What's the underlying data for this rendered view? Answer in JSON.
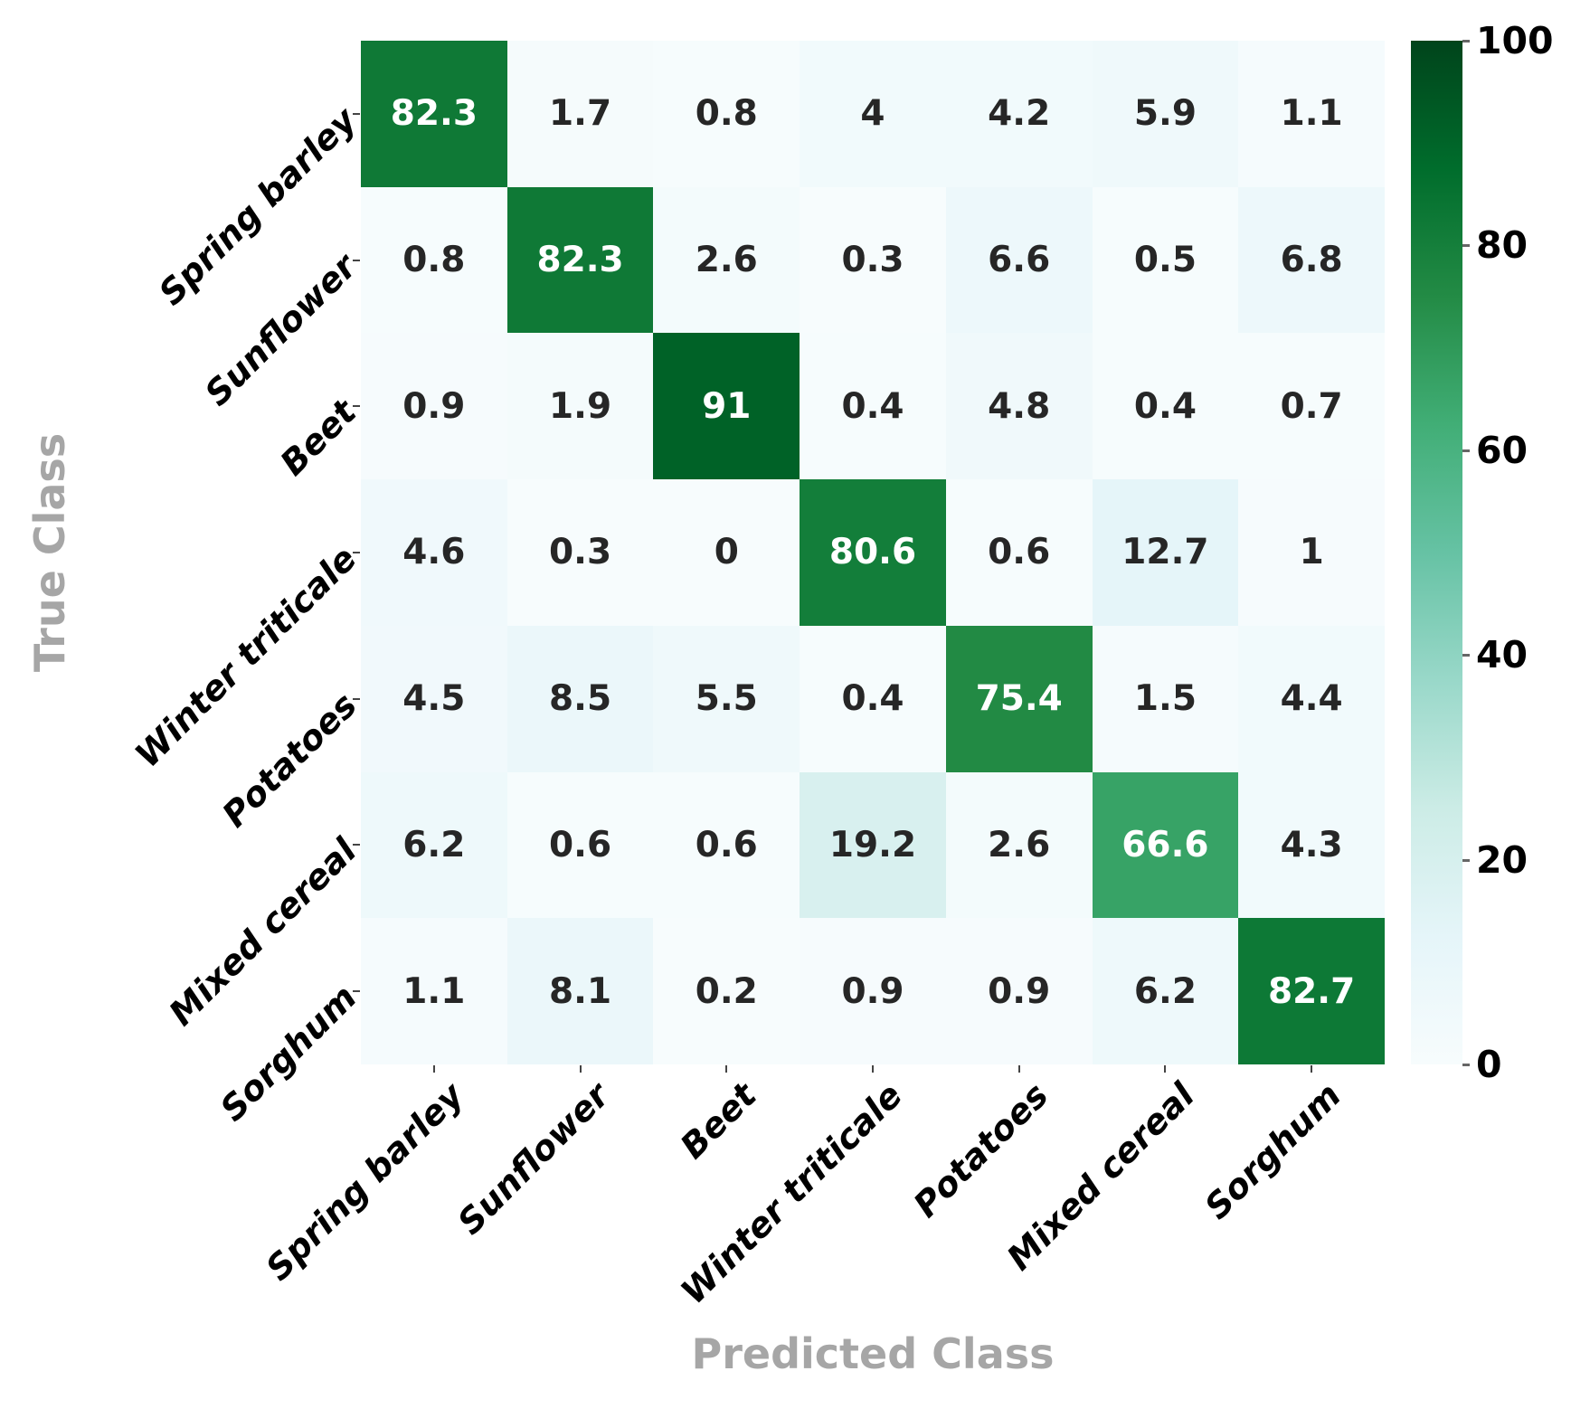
{
  "chart_data": {
    "type": "heatmap",
    "title": "",
    "xlabel": "Predicted Class",
    "ylabel": "True Class",
    "categories": [
      "Spring barley",
      "Sunflower",
      "Beet",
      "Winter triticale",
      "Potatoes",
      "Mixed cereal",
      "Sorghum"
    ],
    "series": [
      {
        "name": "Spring barley",
        "values": [
          82.3,
          1.7,
          0.8,
          4,
          4.2,
          5.9,
          1.1
        ]
      },
      {
        "name": "Sunflower",
        "values": [
          0.8,
          82.3,
          2.6,
          0.3,
          6.6,
          0.5,
          6.8
        ]
      },
      {
        "name": "Beet",
        "values": [
          0.9,
          1.9,
          91,
          0.4,
          4.8,
          0.4,
          0.7
        ]
      },
      {
        "name": "Winter triticale",
        "values": [
          4.6,
          0.3,
          0,
          80.6,
          0.6,
          12.7,
          1
        ]
      },
      {
        "name": "Potatoes",
        "values": [
          4.5,
          8.5,
          5.5,
          0.4,
          75.4,
          1.5,
          4.4
        ]
      },
      {
        "name": "Mixed cereal",
        "values": [
          6.2,
          0.6,
          0.6,
          19.2,
          2.6,
          66.6,
          4.3
        ]
      },
      {
        "name": "Sorghum",
        "values": [
          1.1,
          8.1,
          0.2,
          0.9,
          0.9,
          6.2,
          82.7
        ]
      }
    ],
    "value_range": [
      0,
      100
    ],
    "grid": false,
    "legend_position": "none",
    "colorbar": {
      "position": "right",
      "min": 0,
      "max": 100,
      "ticks": [
        0,
        20,
        40,
        60,
        80,
        100
      ]
    },
    "colormap": {
      "name": "BuGn",
      "stops": [
        [
          0.0,
          "#f7fcfd"
        ],
        [
          0.125,
          "#e5f5f9"
        ],
        [
          0.25,
          "#ccece6"
        ],
        [
          0.375,
          "#99d8c9"
        ],
        [
          0.5,
          "#66c2a4"
        ],
        [
          0.625,
          "#41ae76"
        ],
        [
          0.75,
          "#238b45"
        ],
        [
          0.875,
          "#006d2c"
        ],
        [
          1.0,
          "#00441b"
        ]
      ]
    },
    "colors": {
      "value_text_dark": "#262626",
      "value_text_light": "#ffffff",
      "tick_label": "#000000",
      "axis_title": "#a6a6a6"
    }
  }
}
